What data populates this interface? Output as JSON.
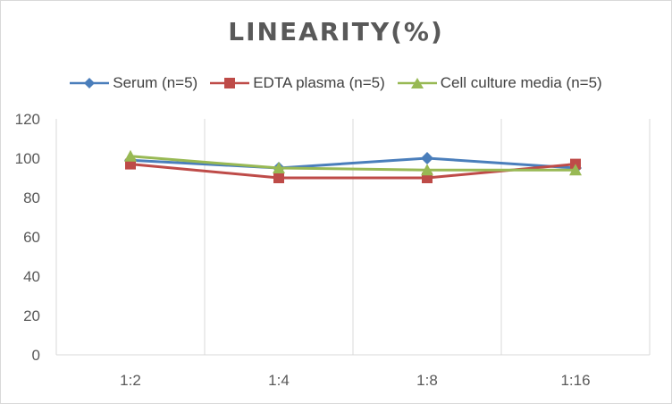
{
  "chart_data": {
    "type": "line",
    "title": "LINEARITY(%)",
    "categories": [
      "1:2",
      "1:4",
      "1:8",
      "1:16"
    ],
    "ylim": [
      0,
      120
    ],
    "yticks": [
      0,
      20,
      40,
      60,
      80,
      100,
      120
    ],
    "grid": "vertical category gridlines",
    "legend_position": "top",
    "series": [
      {
        "name": "Serum (n=5)",
        "values": [
          99,
          95,
          100,
          95
        ],
        "color": "#4a7ebb",
        "marker": "diamond"
      },
      {
        "name": "EDTA plasma (n=5)",
        "values": [
          97,
          90,
          90,
          97
        ],
        "color": "#be4b48",
        "marker": "square"
      },
      {
        "name": "Cell culture media (n=5)",
        "values": [
          101,
          95,
          94,
          94
        ],
        "color": "#98b954",
        "marker": "triangle"
      }
    ]
  }
}
